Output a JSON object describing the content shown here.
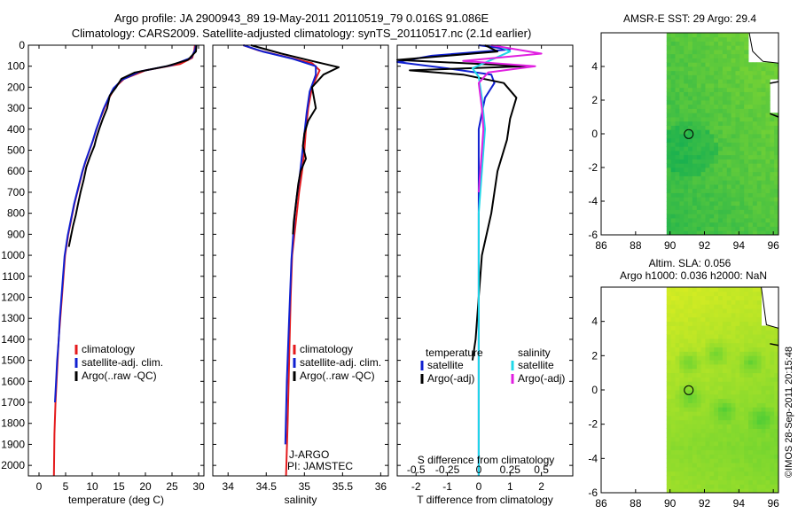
{
  "figure": {
    "title_line1": "Argo profile: JA 2900943_89 19-May-2011 20110519_79 0.016S 91.086E",
    "title_line2": "Climatology: CARS2009. Satellite-adjusted climatology: synTS_20110517.nc (2.1d earlier)",
    "footer": "©IMOS 28-Sep-2011 20:15:48",
    "colors": {
      "climatology": "#e41a1c",
      "satellite": "#1020d0",
      "argo": "#000000",
      "argo_salinity": "#e020e0",
      "satellite_salinity": "#20d8e8",
      "land": "#000000",
      "map_land_fill": "#ffffff"
    }
  },
  "chart_data": [
    {
      "type": "line",
      "id": "temperature",
      "xlabel": "temperature (deg C)",
      "ylabel": "",
      "xlim": [
        -2,
        31
      ],
      "ylim": [
        2050,
        0
      ],
      "xticks": [
        0,
        5,
        10,
        15,
        20,
        25,
        30
      ],
      "xtick_labels": [
        "0",
        "5",
        "10",
        "15",
        "20",
        "25",
        "30"
      ],
      "yticks": [
        0,
        100,
        200,
        300,
        400,
        500,
        600,
        700,
        800,
        900,
        1000,
        1100,
        1200,
        1300,
        1400,
        1500,
        1600,
        1700,
        1800,
        1900,
        2000
      ],
      "legend": [
        "climatology",
        "satellite-adj. clim.",
        "Argo(..raw -QC)"
      ],
      "series": [
        {
          "name": "climatology",
          "color": "#e41a1c",
          "x": [
            29.3,
            29.2,
            28.8,
            26.5,
            20.0,
            16.0,
            14.3,
            13.2,
            12.3,
            11.5,
            10.8,
            10.2,
            9.5,
            8.8,
            8.2,
            7.7,
            7.2,
            6.7,
            6.3,
            5.9,
            5.5,
            5.2,
            4.9,
            4.6,
            4.3,
            4.0,
            3.7,
            3.5,
            3.3,
            3.1,
            2.9,
            2.8
          ],
          "y": [
            0,
            25,
            60,
            90,
            120,
            160,
            200,
            250,
            300,
            350,
            400,
            450,
            500,
            550,
            600,
            650,
            700,
            750,
            800,
            850,
            900,
            950,
            1000,
            1100,
            1200,
            1300,
            1400,
            1500,
            1600,
            1700,
            1850,
            2050
          ]
        },
        {
          "name": "satellite-adj. clim.",
          "color": "#1020d0",
          "x": [
            29.5,
            29.3,
            28.6,
            25.0,
            19.0,
            15.6,
            14.0,
            13.0,
            12.1,
            11.4,
            10.7,
            10.1,
            9.4,
            8.7,
            8.1,
            7.6,
            7.1,
            6.6,
            6.2,
            5.8,
            5.4,
            5.1,
            4.8,
            4.5,
            4.2,
            3.9,
            3.7,
            3.4,
            3.2,
            3.0
          ],
          "y": [
            0,
            25,
            60,
            95,
            125,
            165,
            205,
            255,
            305,
            355,
            405,
            455,
            505,
            555,
            605,
            655,
            705,
            755,
            805,
            855,
            905,
            955,
            1005,
            1105,
            1205,
            1305,
            1405,
            1505,
            1605,
            1700
          ]
        },
        {
          "name": "Argo(..raw -QC)",
          "color": "#000000",
          "x": [
            29.6,
            29.5,
            28.0,
            24.0,
            18.0,
            15.5,
            14.5,
            13.3,
            12.8,
            12.0,
            11.3,
            10.8,
            10.4,
            9.6,
            8.9,
            8.4,
            7.8,
            7.3,
            6.9,
            6.4,
            6.0,
            5.6
          ],
          "y": [
            0,
            30,
            70,
            100,
            130,
            160,
            200,
            240,
            300,
            350,
            400,
            440,
            480,
            530,
            580,
            640,
            700,
            760,
            810,
            860,
            910,
            960
          ]
        }
      ]
    },
    {
      "type": "line",
      "id": "salinity",
      "xlabel": "salinity",
      "ylabel": "",
      "xlim": [
        33.8,
        36.1
      ],
      "ylim": [
        2050,
        0
      ],
      "xticks": [
        34,
        34.5,
        35,
        35.5,
        36
      ],
      "xtick_labels": [
        "34",
        "34.5",
        "35",
        "35.5",
        "36"
      ],
      "legend": [
        "climatology",
        "satellite-adj. clim.",
        "Argo(..raw -QC)"
      ],
      "annotation_line1": "J-ARGO",
      "annotation_line2": "PI: JAMSTEC",
      "series": [
        {
          "name": "climatology",
          "color": "#e41a1c",
          "x": [
            34.2,
            34.4,
            34.75,
            35.1,
            35.2,
            35.1,
            35.05,
            35.02,
            35.0,
            34.97,
            34.93,
            34.9,
            34.87,
            34.84,
            34.82,
            34.8,
            34.78,
            34.76
          ],
          "y": [
            0,
            25,
            55,
            85,
            120,
            200,
            300,
            400,
            500,
            600,
            700,
            800,
            900,
            1000,
            1200,
            1500,
            1800,
            2050
          ]
        },
        {
          "name": "satellite-adj. clim.",
          "color": "#1020d0",
          "x": [
            34.2,
            34.45,
            34.85,
            35.15,
            35.15,
            35.07,
            35.03,
            35.0,
            34.97,
            34.94,
            34.9,
            34.87,
            34.85,
            34.83,
            34.8,
            34.77,
            34.75
          ],
          "y": [
            0,
            30,
            65,
            100,
            140,
            220,
            320,
            420,
            520,
            620,
            720,
            820,
            920,
            1020,
            1300,
            1600,
            1900
          ]
        },
        {
          "name": "Argo(..raw -QC)",
          "color": "#000000",
          "x": [
            34.3,
            34.7,
            35.1,
            35.45,
            35.25,
            35.1,
            35.15,
            35.05,
            35.0,
            34.98,
            35.02,
            34.95,
            34.92,
            34.9,
            34.88,
            34.86,
            34.85
          ],
          "y": [
            0,
            40,
            75,
            105,
            140,
            200,
            300,
            360,
            420,
            480,
            540,
            600,
            660,
            720,
            780,
            840,
            900
          ]
        }
      ]
    },
    {
      "type": "line",
      "id": "difference",
      "xlabel": "T difference from climatology",
      "xlabel_top": "S difference from climatology",
      "xlim": [
        -2.6,
        3.0
      ],
      "ylim": [
        2050,
        0
      ],
      "xticks": [
        -2,
        -1,
        0,
        1,
        2
      ],
      "xtick_labels": [
        "-2",
        "-1",
        "0",
        "1",
        "2"
      ],
      "xticks_top": [
        -2.0,
        -1.0,
        0.0,
        1.0,
        2.0
      ],
      "xtick_labels_top": [
        "-0.5",
        "-0.25",
        "0",
        "0.25",
        "0.5"
      ],
      "legend_group1_title": "temperature",
      "legend_group2_title": "salinity",
      "legend": [
        "satellite",
        "Argo(-adj)",
        "satellite",
        "Argo(-adj)"
      ],
      "series": [
        {
          "name": "satellite",
          "group": "temperature",
          "color": "#1020d0",
          "x": [
            0.0,
            1.0,
            -1.5,
            -2.6,
            -1.0,
            0.4,
            0.5,
            0.2,
            0.0,
            0.0,
            0.0,
            0.0,
            0.0,
            0.0,
            0.0
          ],
          "y": [
            0,
            20,
            50,
            80,
            110,
            140,
            180,
            250,
            400,
            600,
            800,
            1000,
            1300,
            1600,
            2050
          ]
        },
        {
          "name": "Argo(-adj)",
          "group": "temperature",
          "color": "#000000",
          "x": [
            0.2,
            0.6,
            -2.6,
            1.5,
            -2.2,
            -0.5,
            0.8,
            1.2,
            1.0,
            0.9,
            0.6,
            0.4,
            0.1,
            0.0,
            -0.1,
            -0.2
          ],
          "y": [
            0,
            30,
            70,
            100,
            120,
            140,
            180,
            250,
            350,
            450,
            600,
            800,
            1000,
            1200,
            1400,
            1500
          ]
        },
        {
          "name": "satellite",
          "group": "salinity",
          "color": "#20d8e8",
          "x": [
            0.6,
            1.0,
            0.4,
            -0.2,
            0.0,
            0.1,
            0.2,
            0.1,
            0.0,
            0.0,
            0.0,
            0.0,
            0.0,
            0.0
          ],
          "y": [
            0,
            30,
            70,
            110,
            150,
            250,
            400,
            600,
            800,
            1000,
            1300,
            1600,
            1900,
            2050
          ]
        },
        {
          "name": "Argo(-adj)",
          "group": "salinity",
          "color": "#e020e0",
          "x": [
            0.4,
            2.0,
            -0.5,
            1.8,
            0.3,
            0.0,
            0.1,
            0.15,
            0.1,
            0.05,
            0.0
          ],
          "y": [
            0,
            40,
            75,
            100,
            130,
            180,
            300,
            400,
            500,
            600,
            700
          ]
        }
      ]
    },
    {
      "type": "heatmap",
      "id": "sst_map",
      "title": "AMSR-E SST: 29 Argo: 29.4",
      "xlim": [
        86,
        96.3
      ],
      "ylim": [
        -6,
        6
      ],
      "xticks": [
        86,
        88,
        90,
        92,
        94,
        96
      ],
      "xtick_labels": [
        "86",
        "88",
        "90",
        "92",
        "94",
        "96"
      ],
      "yticks": [
        -6,
        -4,
        -2,
        0,
        2,
        4
      ],
      "ytick_labels": [
        "-6",
        "-4",
        "-2",
        "0",
        "2",
        "4"
      ],
      "data_lon_min": 89.8,
      "argo_position": [
        91.086,
        -0.016
      ],
      "colors": {
        "base": "#22c43a",
        "warm": "#7ad63a",
        "cool": "#1db050"
      }
    },
    {
      "type": "heatmap",
      "id": "sla_map",
      "title": "Altim. SLA: 0.056",
      "title_line2": "Argo h1000: 0.036 h2000: NaN",
      "xlim": [
        86,
        96.3
      ],
      "ylim": [
        -6,
        6
      ],
      "xticks": [
        86,
        88,
        90,
        92,
        94,
        96
      ],
      "xtick_labels": [
        "86",
        "88",
        "90",
        "92",
        "94",
        "96"
      ],
      "yticks": [
        -6,
        -4,
        -2,
        0,
        2,
        4
      ],
      "ytick_labels": [
        "-6",
        "-4",
        "-2",
        "0",
        "2",
        "4"
      ],
      "data_lon_min": 89.8,
      "argo_position": [
        91.086,
        -0.016
      ],
      "colors": {
        "base": "#b8e830",
        "yellow": "#e8f020",
        "green": "#5ad030"
      }
    }
  ]
}
